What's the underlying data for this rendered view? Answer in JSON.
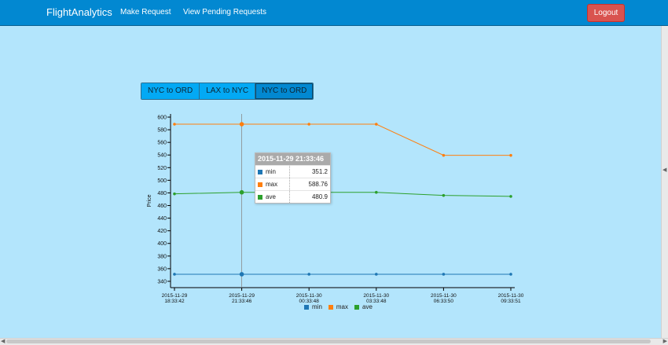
{
  "navbar": {
    "brand": "FlightAnalytics",
    "links": [
      "Make Request",
      "View Pending Requests"
    ],
    "logout_label": "Logout"
  },
  "routes": [
    "NYC to ORD",
    "LAX to NYC",
    "NYC to ORD"
  ],
  "active_route_index": 2,
  "colors": {
    "min": "#1f77b4",
    "max": "#ff7f0e",
    "ave": "#2ca02c",
    "navbar": "#0288d1",
    "page": "#b3e5fc"
  },
  "tooltip": {
    "title": "2015-11-29 21:33:46",
    "rows": [
      {
        "name": "min",
        "value": "351.2"
      },
      {
        "name": "max",
        "value": "588.76"
      },
      {
        "name": "ave",
        "value": "480.9"
      }
    ]
  },
  "chart_data": {
    "type": "line",
    "ylabel": "Price",
    "xlabel": "",
    "ylim": [
      330,
      605
    ],
    "y_ticks": [
      340,
      360,
      380,
      400,
      420,
      440,
      460,
      480,
      500,
      520,
      540,
      560,
      580,
      600
    ],
    "x": [
      [
        "2015-11-29",
        "18:33:42"
      ],
      [
        "2015-11-29",
        "21:33:46"
      ],
      [
        "2015-11-30",
        "00:33:48"
      ],
      [
        "2015-11-30",
        "03:33:48"
      ],
      [
        "2015-11-30",
        "06:33:50"
      ],
      [
        "2015-11-30",
        "09:33:51"
      ]
    ],
    "series": [
      {
        "name": "min",
        "values": [
          351.2,
          351.2,
          351.2,
          351.2,
          351.2,
          351.2
        ]
      },
      {
        "name": "max",
        "values": [
          588.76,
          588.76,
          588.76,
          588.76,
          539.5,
          539.5
        ]
      },
      {
        "name": "ave",
        "values": [
          478.5,
          480.9,
          480.9,
          480.9,
          476,
          474.5
        ]
      }
    ],
    "legend": "bottom",
    "focus_index": 1
  }
}
